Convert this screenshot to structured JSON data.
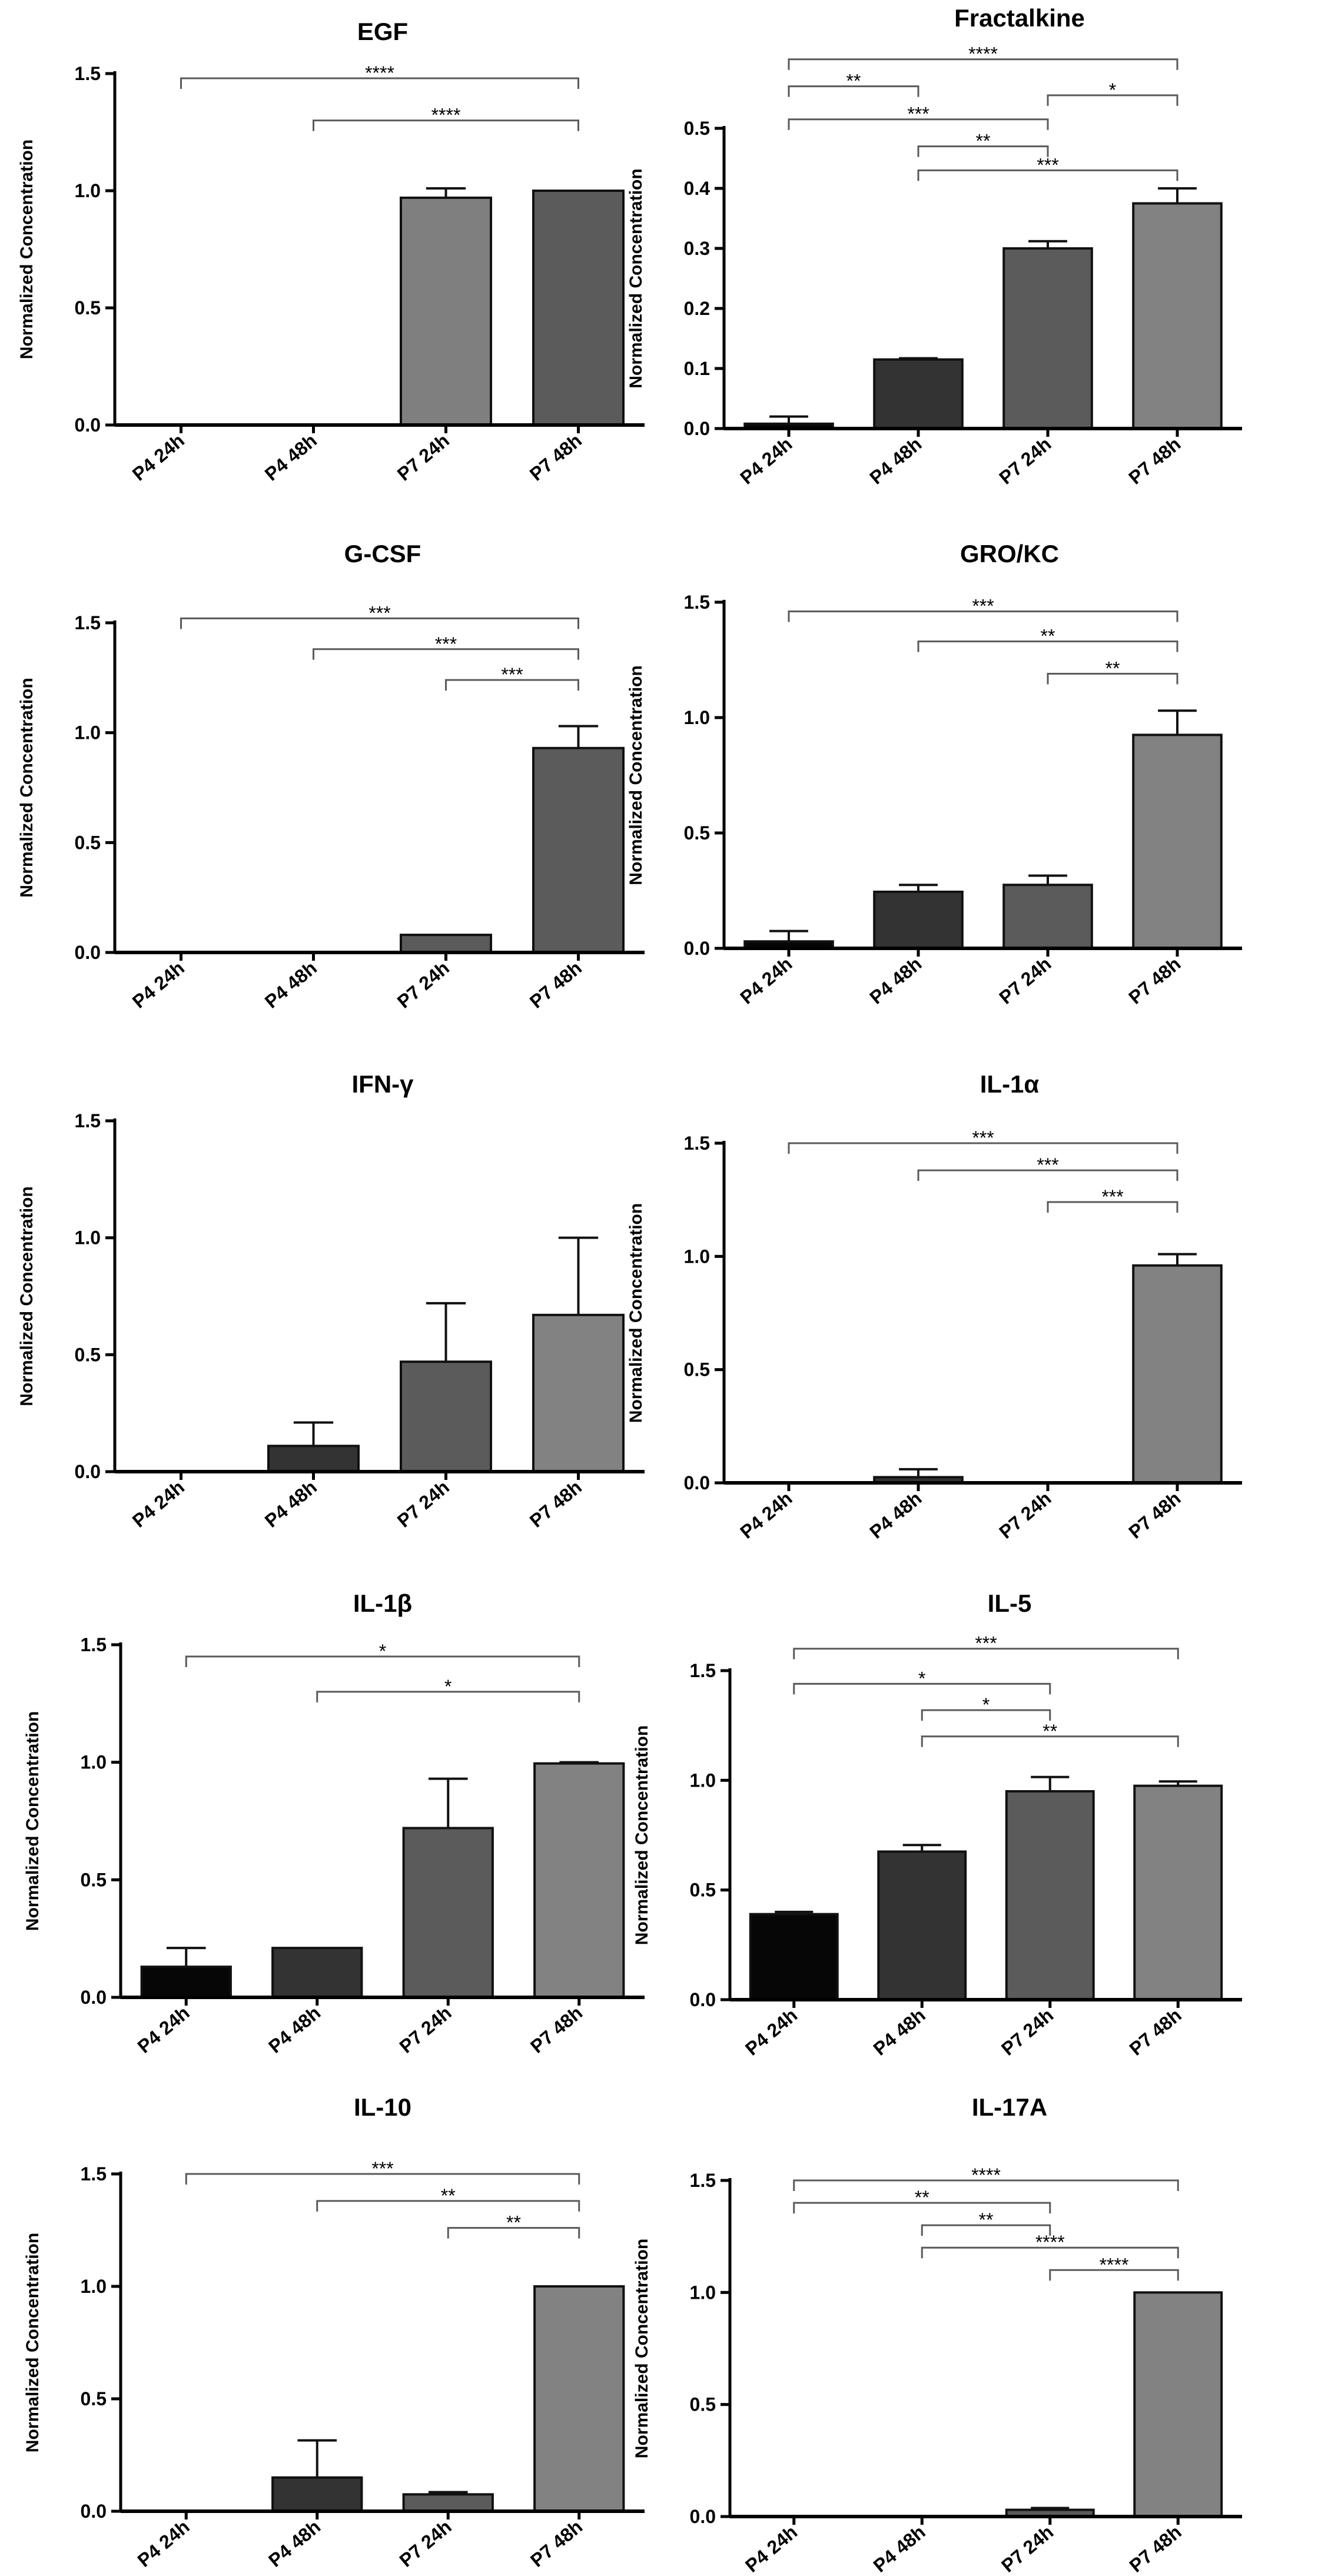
{
  "colors": {
    "black": "#060606",
    "dark": "#333333",
    "mid": "#5b5b5b",
    "light": "#828282",
    "axis": "#000000",
    "bracket": "#5a5a5a"
  },
  "chart_data": [
    {
      "id": "egf",
      "type": "bar",
      "title": "EGF",
      "ylabel": "Normalized Concentration",
      "categories": [
        "P4 24h",
        "P4 48h",
        "P7 24h",
        "P7 48h"
      ],
      "values": [
        0,
        0,
        0.97,
        1.0
      ],
      "errors": [
        0,
        0,
        0.04,
        0
      ],
      "bar_colors": [
        "#555555",
        "#555555",
        "#7f7f7f",
        "#5b5b5b"
      ],
      "ylim": [
        0,
        1.5
      ],
      "yticks": [
        "0.0",
        "0.5",
        "1.0",
        "1.5"
      ],
      "ytick_values": [
        0,
        0.5,
        1,
        1.5
      ],
      "significance": [
        {
          "from": 0,
          "to": 3,
          "label": "****",
          "level": 1.48
        },
        {
          "from": 1,
          "to": 3,
          "label": "****",
          "level": 1.3
        }
      ]
    },
    {
      "id": "fractalkine",
      "type": "bar",
      "title": "Fractalkine",
      "ylabel": "Normalized Concentration",
      "categories": [
        "P4 24h",
        "P4 48h",
        "P7 24h",
        "P7 48h"
      ],
      "values": [
        0.008,
        0.115,
        0.3,
        0.375
      ],
      "errors": [
        0.012,
        0.002,
        0.012,
        0.025
      ],
      "bar_colors": [
        "#060606",
        "#333333",
        "#5b5b5b",
        "#828282"
      ],
      "ylim": [
        0,
        0.5
      ],
      "yticks": [
        "0.0",
        "0.1",
        "0.2",
        "0.3",
        "0.4",
        "0.5"
      ],
      "ytick_values": [
        0,
        0.1,
        0.2,
        0.3,
        0.4,
        0.5
      ],
      "significance": [
        {
          "from": 0,
          "to": 3,
          "label": "****",
          "level": 0.615
        },
        {
          "from": 0,
          "to": 1,
          "label": "**",
          "level": 0.57
        },
        {
          "from": 2,
          "to": 3,
          "label": "*",
          "level": 0.555
        },
        {
          "from": 0,
          "to": 2,
          "label": "***",
          "level": 0.515
        },
        {
          "from": 1,
          "to": 2,
          "label": "**",
          "level": 0.47
        },
        {
          "from": 1,
          "to": 3,
          "label": "***",
          "level": 0.43
        }
      ]
    },
    {
      "id": "gcsf",
      "type": "bar",
      "title": "G-CSF",
      "ylabel": "Normalized Concentration",
      "categories": [
        "P4 24h",
        "P4 48h",
        "P7 24h",
        "P7 48h"
      ],
      "values": [
        0,
        0,
        0.08,
        0.93
      ],
      "errors": [
        0,
        0,
        0,
        0.1
      ],
      "bar_colors": [
        "#555555",
        "#555555",
        "#5b5b5b",
        "#5b5b5b"
      ],
      "ylim": [
        0,
        1.5
      ],
      "yticks": [
        "0.0",
        "0.5",
        "1.0",
        "1.5"
      ],
      "ytick_values": [
        0,
        0.5,
        1,
        1.5
      ],
      "significance": [
        {
          "from": 0,
          "to": 3,
          "label": "***",
          "level": 1.52
        },
        {
          "from": 1,
          "to": 3,
          "label": "***",
          "level": 1.38
        },
        {
          "from": 2,
          "to": 3,
          "label": "***",
          "level": 1.24
        }
      ]
    },
    {
      "id": "grokc",
      "type": "bar",
      "title": "GRO/KC",
      "ylabel": "Normalized Concentration",
      "categories": [
        "P4 24h",
        "P4 48h",
        "P7 24h",
        "P7 48h"
      ],
      "values": [
        0.03,
        0.245,
        0.275,
        0.925
      ],
      "errors": [
        0.045,
        0.03,
        0.04,
        0.105
      ],
      "bar_colors": [
        "#060606",
        "#333333",
        "#5b5b5b",
        "#828282"
      ],
      "ylim": [
        0,
        1.5
      ],
      "yticks": [
        "0.0",
        "0.5",
        "1.0",
        "1.5"
      ],
      "ytick_values": [
        0,
        0.5,
        1,
        1.5
      ],
      "significance": [
        {
          "from": 0,
          "to": 3,
          "label": "***",
          "level": 1.46
        },
        {
          "from": 1,
          "to": 3,
          "label": "**",
          "level": 1.33
        },
        {
          "from": 2,
          "to": 3,
          "label": "**",
          "level": 1.19
        }
      ]
    },
    {
      "id": "ifng",
      "type": "bar",
      "title": "IFN-γ",
      "ylabel": "Normalized Concentration",
      "categories": [
        "P4 24h",
        "P4 48h",
        "P7 24h",
        "P7 48h"
      ],
      "values": [
        0,
        0.11,
        0.47,
        0.67
      ],
      "errors": [
        0,
        0.1,
        0.25,
        0.33
      ],
      "bar_colors": [
        "#555555",
        "#333333",
        "#5b5b5b",
        "#828282"
      ],
      "ylim": [
        0,
        1.5
      ],
      "yticks": [
        "0.0",
        "0.5",
        "1.0",
        "1.5"
      ],
      "ytick_values": [
        0,
        0.5,
        1,
        1.5
      ],
      "significance": []
    },
    {
      "id": "il1a",
      "type": "bar",
      "title": "IL-1α",
      "ylabel": "Normalized Concentration",
      "categories": [
        "P4 24h",
        "P4 48h",
        "P7 24h",
        "P7 48h"
      ],
      "values": [
        0,
        0.025,
        0,
        0.96
      ],
      "errors": [
        0,
        0.035,
        0,
        0.05
      ],
      "bar_colors": [
        "#555555",
        "#333333",
        "#555555",
        "#828282"
      ],
      "ylim": [
        0,
        1.5
      ],
      "yticks": [
        "0.0",
        "0.5",
        "1.0",
        "1.5"
      ],
      "ytick_values": [
        0,
        0.5,
        1,
        1.5
      ],
      "significance": [
        {
          "from": 0,
          "to": 3,
          "label": "***",
          "level": 1.5
        },
        {
          "from": 1,
          "to": 3,
          "label": "***",
          "level": 1.38
        },
        {
          "from": 2,
          "to": 3,
          "label": "***",
          "level": 1.24
        }
      ]
    },
    {
      "id": "il1b",
      "type": "bar",
      "title": "IL-1β",
      "ylabel": "Normalized Concentration",
      "categories": [
        "P4 24h",
        "P4 48h",
        "P7 24h",
        "P7 48h"
      ],
      "values": [
        0.13,
        0.21,
        0.72,
        0.995
      ],
      "errors": [
        0.08,
        0,
        0.21,
        0.005
      ],
      "bar_colors": [
        "#060606",
        "#333333",
        "#5b5b5b",
        "#828282"
      ],
      "ylim": [
        0,
        1.5
      ],
      "yticks": [
        "0.0",
        "0.5",
        "1.0",
        "1.5"
      ],
      "ytick_values": [
        0,
        0.5,
        1,
        1.5
      ],
      "significance": [
        {
          "from": 0,
          "to": 3,
          "label": "*",
          "level": 1.45
        },
        {
          "from": 1,
          "to": 3,
          "label": "*",
          "level": 1.3
        }
      ]
    },
    {
      "id": "il5",
      "type": "bar",
      "title": "IL-5",
      "ylabel": "Normalized Concentration",
      "categories": [
        "P4 24h",
        "P4 48h",
        "P7 24h",
        "P7 48h"
      ],
      "values": [
        0.39,
        0.675,
        0.95,
        0.975
      ],
      "errors": [
        0.01,
        0.03,
        0.065,
        0.02
      ],
      "bar_colors": [
        "#060606",
        "#333333",
        "#5b5b5b",
        "#828282"
      ],
      "ylim": [
        0,
        1.5
      ],
      "yticks": [
        "0.0",
        "0.5",
        "1.0",
        "1.5"
      ],
      "ytick_values": [
        0,
        0.5,
        1,
        1.5
      ],
      "significance": [
        {
          "from": 0,
          "to": 3,
          "label": "***",
          "level": 1.6
        },
        {
          "from": 0,
          "to": 2,
          "label": "*",
          "level": 1.44
        },
        {
          "from": 1,
          "to": 2,
          "label": "*",
          "level": 1.32
        },
        {
          "from": 1,
          "to": 3,
          "label": "**",
          "level": 1.2
        }
      ]
    },
    {
      "id": "il10",
      "type": "bar",
      "title": "IL-10",
      "ylabel": "Normalized Concentration",
      "categories": [
        "P4 24h",
        "P4 48h",
        "P7 24h",
        "P7 48h"
      ],
      "values": [
        0,
        0.15,
        0.075,
        1.0
      ],
      "errors": [
        0,
        0.165,
        0.01,
        0
      ],
      "bar_colors": [
        "#555555",
        "#333333",
        "#5b5b5b",
        "#828282"
      ],
      "ylim": [
        0,
        1.5
      ],
      "yticks": [
        "0.0",
        "0.5",
        "1.0",
        "1.5"
      ],
      "ytick_values": [
        0,
        0.5,
        1,
        1.5
      ],
      "significance": [
        {
          "from": 0,
          "to": 3,
          "label": "***",
          "level": 1.5
        },
        {
          "from": 1,
          "to": 3,
          "label": "**",
          "level": 1.38
        },
        {
          "from": 2,
          "to": 3,
          "label": "**",
          "level": 1.26
        }
      ]
    },
    {
      "id": "il17a",
      "type": "bar",
      "title": "IL-17A",
      "ylabel": "Normalized Concentration",
      "categories": [
        "P4 24h",
        "P4 48h",
        "P7 24h",
        "P7 48h"
      ],
      "values": [
        0,
        0,
        0.03,
        1.0
      ],
      "errors": [
        0,
        0,
        0.008,
        0
      ],
      "bar_colors": [
        "#555555",
        "#555555",
        "#5b5b5b",
        "#828282"
      ],
      "ylim": [
        0,
        1.5
      ],
      "yticks": [
        "0.0",
        "0.5",
        "1.0",
        "1.5"
      ],
      "ytick_values": [
        0,
        0.5,
        1,
        1.5
      ],
      "significance": [
        {
          "from": 0,
          "to": 3,
          "label": "****",
          "level": 1.5
        },
        {
          "from": 0,
          "to": 2,
          "label": "**",
          "level": 1.4
        },
        {
          "from": 1,
          "to": 2,
          "label": "**",
          "level": 1.3
        },
        {
          "from": 1,
          "to": 3,
          "label": "****",
          "level": 1.2
        },
        {
          "from": 2,
          "to": 3,
          "label": "****",
          "level": 1.1
        }
      ]
    }
  ]
}
